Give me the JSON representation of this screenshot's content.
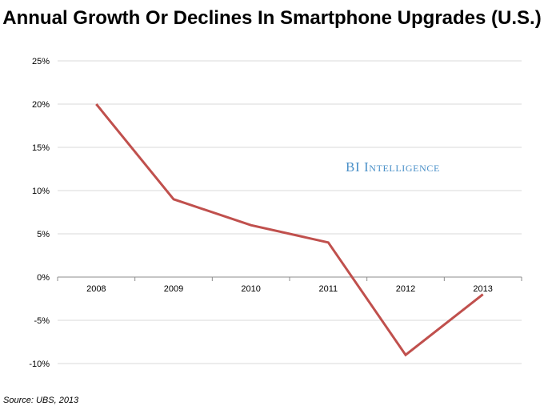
{
  "chart_data": {
    "type": "line",
    "title": "Annual Growth Or Declines In Smartphone Upgrades (U.S.)",
    "xlabel": "",
    "ylabel": "",
    "categories": [
      "2008",
      "2009",
      "2010",
      "2011",
      "2012",
      "2013"
    ],
    "series": [
      {
        "values": [
          20,
          9,
          6,
          4,
          -9,
          -2
        ],
        "color": "#c0504d"
      }
    ],
    "ylim": [
      -10,
      25
    ],
    "yticks": [
      25,
      20,
      15,
      10,
      5,
      0,
      -5,
      -10
    ],
    "ytick_labels": [
      "25%",
      "20%",
      "15%",
      "10%",
      "5%",
      "0%",
      "-5%",
      "-10%"
    ],
    "grid": true,
    "legend": "none",
    "watermark": "BI Intelligence",
    "source": "Source: UBS, 2013"
  }
}
